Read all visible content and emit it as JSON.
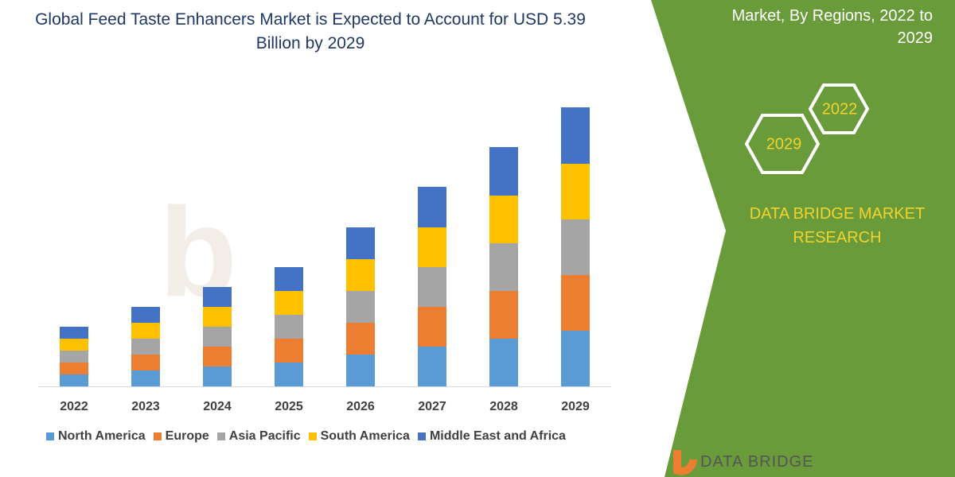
{
  "chart_data": {
    "type": "stacked-bar",
    "title": "Global Feed Taste Enhancers Market is Expected to Account for USD 5.39 Billion by 2029",
    "categories": [
      "2022",
      "2023",
      "2024",
      "2025",
      "2026",
      "2027",
      "2028",
      "2029"
    ],
    "series": [
      {
        "name": "North America",
        "color": "#5b9bd5",
        "values": [
          15,
          20,
          25,
          30,
          40,
          50,
          60,
          70
        ]
      },
      {
        "name": "Europe",
        "color": "#ed7d31",
        "values": [
          15,
          20,
          25,
          30,
          40,
          50,
          60,
          70
        ]
      },
      {
        "name": "Asia Pacific",
        "color": "#a5a5a5",
        "values": [
          15,
          20,
          25,
          30,
          40,
          50,
          60,
          70
        ]
      },
      {
        "name": "South America",
        "color": "#ffc000",
        "values": [
          15,
          20,
          25,
          30,
          40,
          50,
          60,
          70
        ]
      },
      {
        "name": "Middle East and Africa",
        "color": "#4472c4",
        "values": [
          15,
          20,
          25,
          30,
          40,
          51,
          61,
          71
        ]
      }
    ],
    "ylim": [
      0,
      360
    ]
  },
  "panel": {
    "subtitle": "Market, By Regions, 2022 to 2029",
    "hex_top": "2022",
    "hex_bottom": "2029",
    "brand": "DATA BRIDGE MARKET RESEARCH",
    "logo": "DATA BRIDGE"
  }
}
